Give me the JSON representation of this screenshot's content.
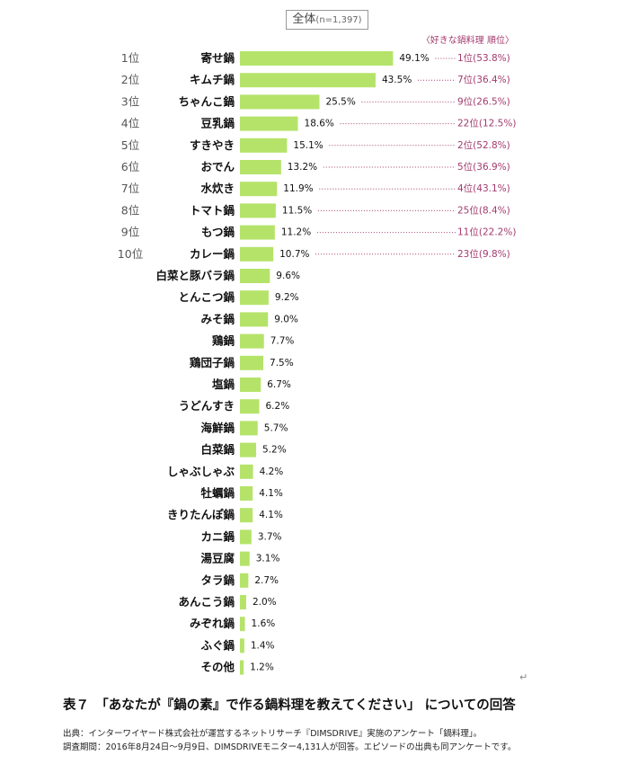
{
  "header": {
    "total_label": "全体",
    "total_n": "(n=1,397)"
  },
  "chart_data": {
    "type": "bar",
    "orientation": "horizontal",
    "ranks": [
      "1位",
      "2位",
      "3位",
      "4位",
      "5位",
      "6位",
      "7位",
      "8位",
      "9位",
      "10位"
    ],
    "categories": [
      "寄せ鍋",
      "キムチ鍋",
      "ちゃんこ鍋",
      "豆乳鍋",
      "すきやき",
      "おでん",
      "水炊き",
      "トマト鍋",
      "もつ鍋",
      "カレー鍋",
      "白菜と豚バラ鍋",
      "とんこつ鍋",
      "みそ鍋",
      "鶏鍋",
      "鶏団子鍋",
      "塩鍋",
      "うどんすき",
      "海鮮鍋",
      "白菜鍋",
      "しゃぶしゃぶ",
      "牡蠣鍋",
      "きりたんぽ鍋",
      "カニ鍋",
      "湯豆腐",
      "タラ鍋",
      "あんこう鍋",
      "みぞれ鍋",
      "ふぐ鍋",
      "その他"
    ],
    "values": [
      49.1,
      43.5,
      25.5,
      18.6,
      15.1,
      13.2,
      11.9,
      11.5,
      11.2,
      10.7,
      9.6,
      9.2,
      9.0,
      7.7,
      7.5,
      6.7,
      6.2,
      5.7,
      5.2,
      4.2,
      4.1,
      4.1,
      3.7,
      3.1,
      2.7,
      2.0,
      1.6,
      1.4,
      1.2
    ],
    "value_labels": [
      "49.1%",
      "43.5%",
      "25.5%",
      "18.6%",
      "15.1%",
      "13.2%",
      "11.9%",
      "11.5%",
      "11.2%",
      "10.7%",
      "9.6%",
      "9.2%",
      "9.0%",
      "7.7%",
      "7.5%",
      "6.7%",
      "6.2%",
      "5.7%",
      "5.2%",
      "4.2%",
      "4.1%",
      "4.1%",
      "3.7%",
      "3.1%",
      "2.7%",
      "2.0%",
      "1.6%",
      "1.4%",
      "1.2%"
    ],
    "favorite_header": "〈好きな鍋料理 順位〉",
    "favorite_ranks": [
      "1位(53.8%)",
      "7位(36.4%)",
      "9位(26.5%)",
      "22位(12.5%)",
      "2位(52.8%)",
      "5位(36.9%)",
      "4位(43.1%)",
      "25位(8.4%)",
      "11位(22.2%)",
      "23位(9.8%)"
    ],
    "colors": {
      "bar": "#b5e36a",
      "favorite": "#a33a6e",
      "rank": "#555555"
    }
  },
  "caption": "表７　「あなたが『鍋の素』で作る鍋料理を教えてください」 についての回答",
  "source": {
    "line1": "出典：インターワイヤード株式会社が運営するネットリサーチ『DIMSDRIVE』実施のアンケート「鍋料理」。",
    "line2": "調査期間：2016年8月24日～9月9日、DIMSDRIVEモニター4,131人が回答。エピソードの出典も同アンケートです。"
  },
  "return_mark": "↵"
}
